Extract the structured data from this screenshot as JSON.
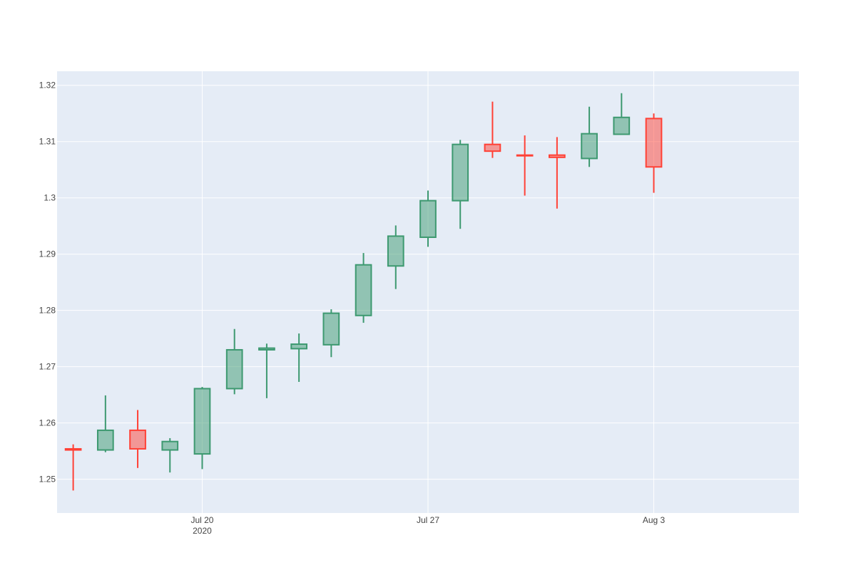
{
  "chart_data": {
    "type": "candlestick",
    "title": "",
    "xlabel": "",
    "ylabel": "",
    "grid": true,
    "ylim": [
      1.244,
      1.3225
    ],
    "xlim": [
      "2020-07-15T12:00",
      "2020-08-07T12:00"
    ],
    "yticks": [
      1.25,
      1.26,
      1.27,
      1.28,
      1.29,
      1.3,
      1.31,
      1.32
    ],
    "ytick_labels": [
      "1.25",
      "1.26",
      "1.27",
      "1.28",
      "1.29",
      "1.3",
      "1.31",
      "1.32"
    ],
    "xticks": [
      {
        "date": "2020-07-20",
        "label": "Jul 20",
        "sublabel": "2020"
      },
      {
        "date": "2020-07-27",
        "label": "Jul 27",
        "sublabel": ""
      },
      {
        "date": "2020-08-03",
        "label": "Aug 3",
        "sublabel": ""
      }
    ],
    "increasing_color": "#3d9970",
    "decreasing_color": "#ff4136",
    "plot_background": "#e5ecf6",
    "candles": [
      {
        "date": "2020-07-16",
        "open": 1.2554,
        "high": 1.2562,
        "low": 1.248,
        "close": 1.2552
      },
      {
        "date": "2020-07-17",
        "open": 1.2552,
        "high": 1.2649,
        "low": 1.2548,
        "close": 1.2587
      },
      {
        "date": "2020-07-18",
        "open": 1.2587,
        "high": 1.2623,
        "low": 1.252,
        "close": 1.2554
      },
      {
        "date": "2020-07-19",
        "open": 1.2552,
        "high": 1.2573,
        "low": 1.2512,
        "close": 1.2567
      },
      {
        "date": "2020-07-20",
        "open": 1.2545,
        "high": 1.2664,
        "low": 1.2518,
        "close": 1.2661
      },
      {
        "date": "2020-07-21",
        "open": 1.2661,
        "high": 1.2767,
        "low": 1.2651,
        "close": 1.273
      },
      {
        "date": "2020-07-22",
        "open": 1.273,
        "high": 1.2741,
        "low": 1.2644,
        "close": 1.2733
      },
      {
        "date": "2020-07-23",
        "open": 1.2732,
        "high": 1.2759,
        "low": 1.2673,
        "close": 1.274
      },
      {
        "date": "2020-07-24",
        "open": 1.2739,
        "high": 1.2802,
        "low": 1.2717,
        "close": 1.2795
      },
      {
        "date": "2020-07-25",
        "open": 1.2791,
        "high": 1.2902,
        "low": 1.2778,
        "close": 1.2881
      },
      {
        "date": "2020-07-26",
        "open": 1.2879,
        "high": 1.2951,
        "low": 1.2838,
        "close": 1.2932
      },
      {
        "date": "2020-07-27",
        "open": 1.293,
        "high": 1.3013,
        "low": 1.2913,
        "close": 1.2995
      },
      {
        "date": "2020-07-28",
        "open": 1.2995,
        "high": 1.3103,
        "low": 1.2945,
        "close": 1.3095
      },
      {
        "date": "2020-07-29",
        "open": 1.3095,
        "high": 1.3171,
        "low": 1.3071,
        "close": 1.3083
      },
      {
        "date": "2020-07-30",
        "open": 1.3076,
        "high": 1.3111,
        "low": 1.3004,
        "close": 1.3075
      },
      {
        "date": "2020-07-31",
        "open": 1.3076,
        "high": 1.3108,
        "low": 1.2981,
        "close": 1.3072
      },
      {
        "date": "2020-08-01",
        "open": 1.307,
        "high": 1.3162,
        "low": 1.3055,
        "close": 1.3114
      },
      {
        "date": "2020-08-02",
        "open": 1.3113,
        "high": 1.3186,
        "low": 1.3113,
        "close": 1.3143
      },
      {
        "date": "2020-08-03",
        "open": 1.3141,
        "high": 1.315,
        "low": 1.3009,
        "close": 1.3055
      }
    ]
  }
}
